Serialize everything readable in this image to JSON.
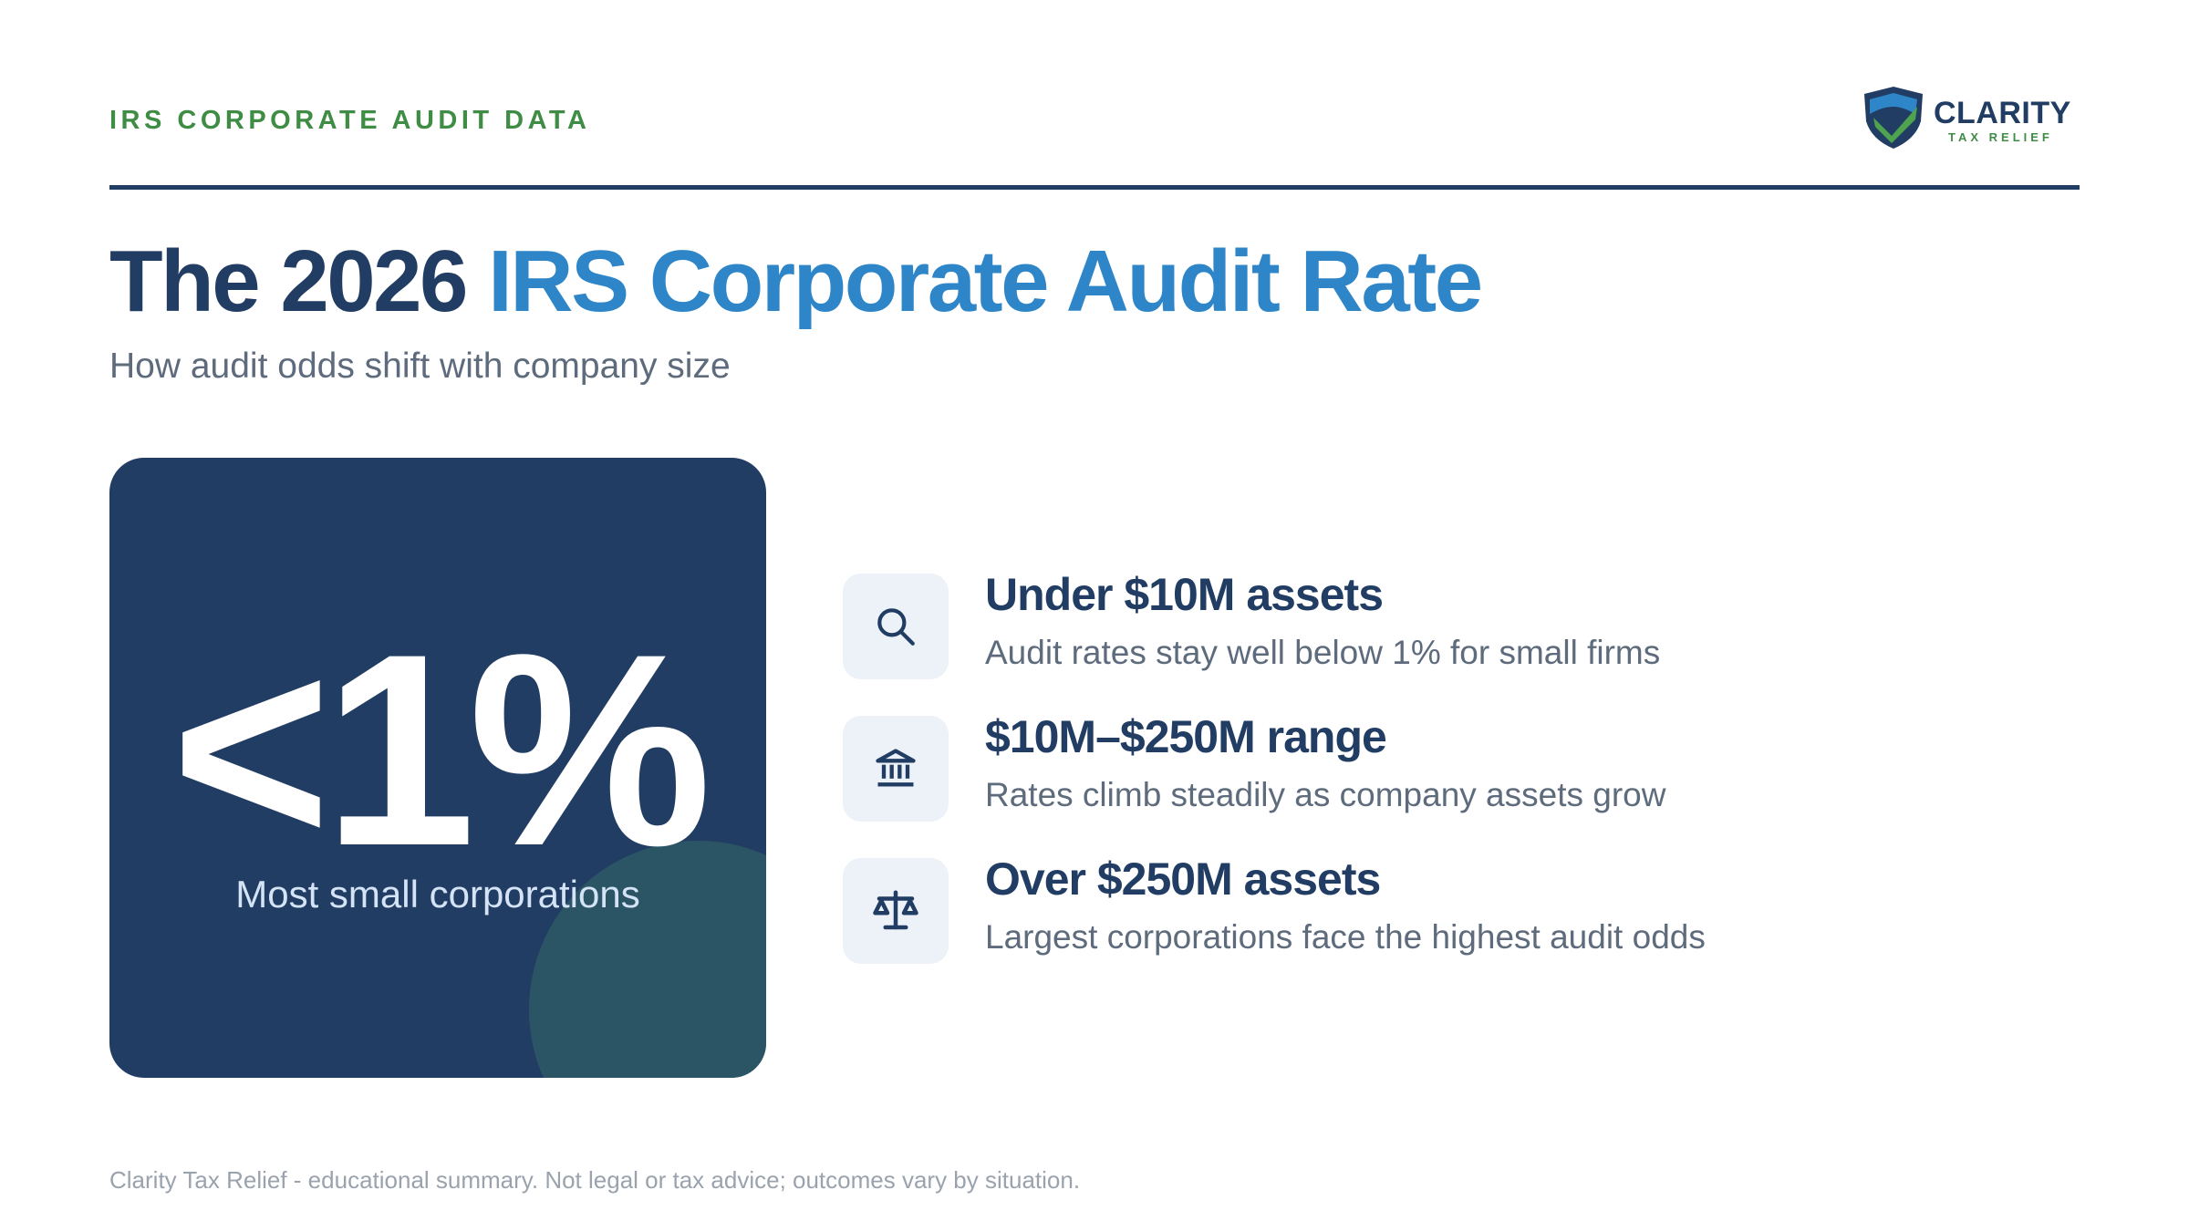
{
  "header": {
    "eyebrow": "IRS CORPORATE AUDIT DATA",
    "logo_name": "CLARITY",
    "logo_tagline": "TAX RELIEF"
  },
  "title": {
    "lead": "The 2026",
    "highlight": "IRS Corporate Audit Rate"
  },
  "subtitle": "How audit odds shift with company size",
  "stat": {
    "value": "<1%",
    "label": "Most small corporations"
  },
  "items": [
    {
      "heading": "Under $10M assets",
      "description": "Audit rates stay well below 1% for small firms"
    },
    {
      "heading": "$10M–$250M range",
      "description": "Rates climb steadily as company assets grow"
    },
    {
      "heading": "Over $250M assets",
      "description": "Largest corporations face the highest audit odds"
    }
  ],
  "footer": "Clarity Tax Relief - educational summary. Not legal or tax advice; outcomes vary by situation."
}
